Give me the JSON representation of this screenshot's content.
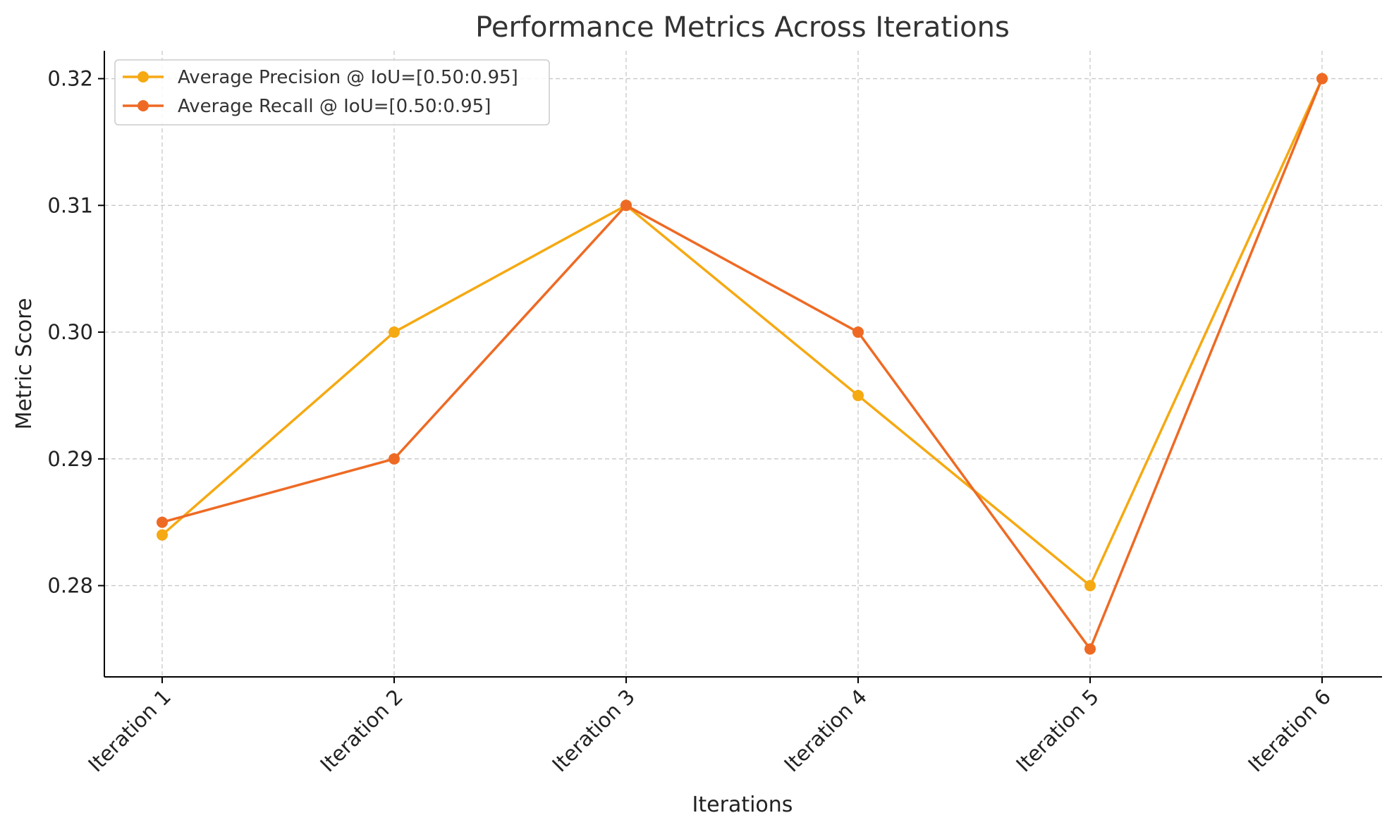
{
  "chart_data": {
    "type": "line",
    "title": "Performance Metrics Across Iterations",
    "xlabel": "Iterations",
    "ylabel": "Metric Score",
    "categories": [
      "Iteration 1",
      "Iteration 2",
      "Iteration 3",
      "Iteration 4",
      "Iteration 5",
      "Iteration 6"
    ],
    "yticks": [
      0.28,
      0.29,
      0.3,
      0.31,
      0.32
    ],
    "ytick_labels": [
      "0.28",
      "0.29",
      "0.30",
      "0.31",
      "0.32"
    ],
    "ylim": [
      0.2728,
      0.3222
    ],
    "grid": true,
    "legend_position": "top-left",
    "series": [
      {
        "name": "Average Precision @ IoU=[0.50:0.95]",
        "color": "#F5A912",
        "values": [
          0.284,
          0.3,
          0.31,
          0.295,
          0.28,
          0.32
        ]
      },
      {
        "name": "Average Recall @ IoU=[0.50:0.95]",
        "color": "#EE6A24",
        "values": [
          0.285,
          0.29,
          0.31,
          0.3,
          0.275,
          0.32
        ]
      }
    ]
  }
}
